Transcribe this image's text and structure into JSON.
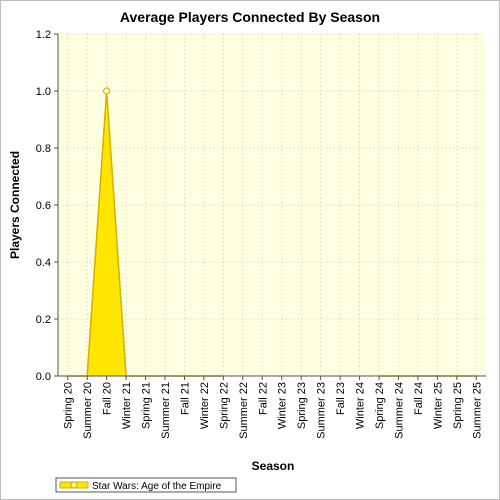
{
  "chart_data": {
    "type": "area",
    "title": "Average Players Connected By Season",
    "xlabel": "Season",
    "ylabel": "Players Connected",
    "ylim": [
      0,
      1.2
    ],
    "yticks": [
      "0.0",
      "0.2",
      "0.4",
      "0.6",
      "0.8",
      "1.0",
      "1.2"
    ],
    "grid": true,
    "legend_position": "bottom-left",
    "categories": [
      "Spring 20",
      "Summer 20",
      "Fall 20",
      "Winter 21",
      "Spring 21",
      "Summer 21",
      "Fall 21",
      "Winter 22",
      "Spring 22",
      "Summer 22",
      "Fall 22",
      "Winter 23",
      "Spring 23",
      "Summer 23",
      "Fall 23",
      "Winter 24",
      "Spring 24",
      "Summer 24",
      "Fall 24",
      "Winter 25",
      "Spring 25",
      "Summer 25"
    ],
    "series": [
      {
        "name": "Star Wars: Age of the Empire",
        "color": "#ffe600",
        "line_color": "#d4b000",
        "values": [
          0,
          0,
          1.0,
          0,
          0,
          0,
          0,
          0,
          0,
          null,
          null,
          null,
          null,
          null,
          null,
          null,
          0,
          0,
          0,
          0,
          0,
          0
        ]
      }
    ],
    "plot_background": "#ffffe0"
  }
}
